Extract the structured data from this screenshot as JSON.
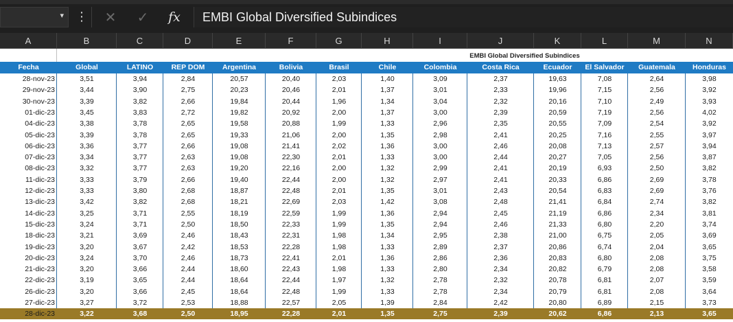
{
  "name_box": {
    "value": ""
  },
  "formula_bar": {
    "formula": "EMBI Global Diversified Subindices"
  },
  "icons": {
    "more": "more-vertical-icon",
    "cancel": "close-icon",
    "enter": "check-icon",
    "fx": "function-icon"
  },
  "colors": {
    "header_blue": "#1f7bc4",
    "highlight_gold": "#9a7a28",
    "dark_chrome": "#1f1f1f"
  },
  "columns": [
    "A",
    "B",
    "C",
    "D",
    "E",
    "F",
    "G",
    "H",
    "I",
    "J",
    "K",
    "L",
    "M",
    "N"
  ],
  "table": {
    "title": "EMBI Global Diversified Subindices",
    "headers": [
      "Fecha",
      "Global",
      "LATINO",
      "REP DOM",
      "Argentina",
      "Bolivia",
      "Brasil",
      "Chile",
      "Colombia",
      "Costa Rica",
      "Ecuador",
      "El Salvador",
      "Guatemala",
      "Honduras"
    ],
    "rows": [
      [
        "28-nov-23",
        "3,51",
        "3,94",
        "2,84",
        "20,57",
        "20,40",
        "2,03",
        "1,40",
        "3,09",
        "2,37",
        "19,63",
        "7,08",
        "2,64",
        "3,98"
      ],
      [
        "29-nov-23",
        "3,44",
        "3,90",
        "2,75",
        "20,23",
        "20,46",
        "2,01",
        "1,37",
        "3,01",
        "2,33",
        "19,96",
        "7,15",
        "2,56",
        "3,92"
      ],
      [
        "30-nov-23",
        "3,39",
        "3,82",
        "2,66",
        "19,84",
        "20,44",
        "1,96",
        "1,34",
        "3,04",
        "2,32",
        "20,16",
        "7,10",
        "2,49",
        "3,93"
      ],
      [
        "01-dic-23",
        "3,45",
        "3,83",
        "2,72",
        "19,82",
        "20,92",
        "2,00",
        "1,37",
        "3,00",
        "2,39",
        "20,59",
        "7,19",
        "2,56",
        "4,02"
      ],
      [
        "04-dic-23",
        "3,38",
        "3,78",
        "2,65",
        "19,58",
        "20,88",
        "1,99",
        "1,33",
        "2,96",
        "2,35",
        "20,55",
        "7,09",
        "2,54",
        "3,92"
      ],
      [
        "05-dic-23",
        "3,39",
        "3,78",
        "2,65",
        "19,33",
        "21,06",
        "2,00",
        "1,35",
        "2,98",
        "2,41",
        "20,25",
        "7,16",
        "2,55",
        "3,97"
      ],
      [
        "06-dic-23",
        "3,36",
        "3,77",
        "2,66",
        "19,08",
        "21,41",
        "2,02",
        "1,36",
        "3,00",
        "2,46",
        "20,08",
        "7,13",
        "2,57",
        "3,94"
      ],
      [
        "07-dic-23",
        "3,34",
        "3,77",
        "2,63",
        "19,08",
        "22,30",
        "2,01",
        "1,33",
        "3,00",
        "2,44",
        "20,27",
        "7,05",
        "2,56",
        "3,87"
      ],
      [
        "08-dic-23",
        "3,32",
        "3,77",
        "2,63",
        "19,20",
        "22,16",
        "2,00",
        "1,32",
        "2,99",
        "2,41",
        "20,19",
        "6,93",
        "2,50",
        "3,82"
      ],
      [
        "11-dic-23",
        "3,33",
        "3,79",
        "2,66",
        "19,40",
        "22,44",
        "2,00",
        "1,32",
        "2,97",
        "2,41",
        "20,33",
        "6,86",
        "2,69",
        "3,78"
      ],
      [
        "12-dic-23",
        "3,33",
        "3,80",
        "2,68",
        "18,87",
        "22,48",
        "2,01",
        "1,35",
        "3,01",
        "2,43",
        "20,54",
        "6,83",
        "2,69",
        "3,76"
      ],
      [
        "13-dic-23",
        "3,42",
        "3,82",
        "2,68",
        "18,21",
        "22,69",
        "2,03",
        "1,42",
        "3,08",
        "2,48",
        "21,41",
        "6,84",
        "2,74",
        "3,82"
      ],
      [
        "14-dic-23",
        "3,25",
        "3,71",
        "2,55",
        "18,19",
        "22,59",
        "1,99",
        "1,36",
        "2,94",
        "2,45",
        "21,19",
        "6,86",
        "2,34",
        "3,81"
      ],
      [
        "15-dic-23",
        "3,24",
        "3,71",
        "2,50",
        "18,50",
        "22,33",
        "1,99",
        "1,35",
        "2,94",
        "2,46",
        "21,33",
        "6,80",
        "2,20",
        "3,74"
      ],
      [
        "18-dic-23",
        "3,21",
        "3,69",
        "2,46",
        "18,43",
        "22,31",
        "1,98",
        "1,34",
        "2,95",
        "2,38",
        "21,00",
        "6,75",
        "2,05",
        "3,69"
      ],
      [
        "19-dic-23",
        "3,20",
        "3,67",
        "2,42",
        "18,53",
        "22,28",
        "1,98",
        "1,33",
        "2,89",
        "2,37",
        "20,86",
        "6,74",
        "2,04",
        "3,65"
      ],
      [
        "20-dic-23",
        "3,24",
        "3,70",
        "2,46",
        "18,73",
        "22,41",
        "2,01",
        "1,36",
        "2,86",
        "2,36",
        "20,83",
        "6,80",
        "2,08",
        "3,75"
      ],
      [
        "21-dic-23",
        "3,20",
        "3,66",
        "2,44",
        "18,60",
        "22,43",
        "1,98",
        "1,33",
        "2,80",
        "2,34",
        "20,82",
        "6,79",
        "2,08",
        "3,58"
      ],
      [
        "22-dic-23",
        "3,19",
        "3,65",
        "2,44",
        "18,64",
        "22,44",
        "1,97",
        "1,32",
        "2,78",
        "2,32",
        "20,78",
        "6,81",
        "2,07",
        "3,59"
      ],
      [
        "26-dic-23",
        "3,20",
        "3,66",
        "2,45",
        "18,64",
        "22,48",
        "1,99",
        "1,33",
        "2,78",
        "2,34",
        "20,79",
        "6,81",
        "2,08",
        "3,64"
      ],
      [
        "27-dic-23",
        "3,27",
        "3,72",
        "2,53",
        "18,88",
        "22,57",
        "2,05",
        "1,39",
        "2,84",
        "2,42",
        "20,80",
        "6,89",
        "2,15",
        "3,73"
      ],
      [
        "28-dic-23",
        "3,22",
        "3,68",
        "2,50",
        "18,95",
        "22,28",
        "2,01",
        "1,35",
        "2,75",
        "2,39",
        "20,62",
        "6,86",
        "2,13",
        "3,65"
      ]
    ]
  }
}
